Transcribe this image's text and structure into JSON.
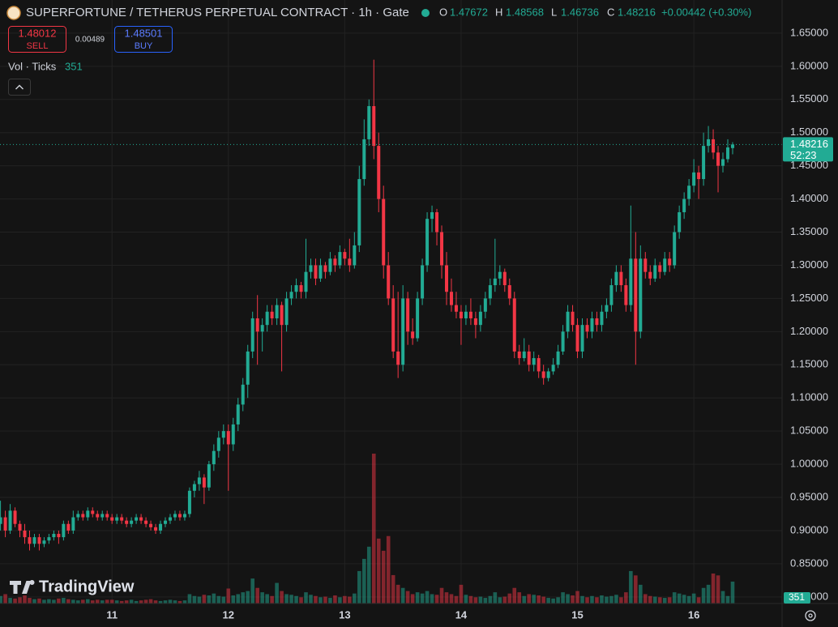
{
  "chart_data": {
    "type": "candlestick",
    "title": "SUPERFORTUNE / TETHERUS PERPETUAL CONTRACT · 1h · Gate",
    "ohlc_labels": [
      "O",
      "H",
      "L",
      "C"
    ],
    "change": "+0.00442 (+0.30%)",
    "colors": {
      "up": "#22ab94",
      "down": "#f23645"
    },
    "series": [
      {
        "values": [
          [
            0.91,
            0.945,
            0.9,
            0.92
          ],
          [
            0.92,
            0.93,
            0.89,
            0.9
          ],
          [
            0.9,
            0.94,
            0.895,
            0.93
          ],
          [
            0.93,
            0.935,
            0.905,
            0.91
          ],
          [
            0.91,
            0.915,
            0.89,
            0.9
          ],
          [
            0.9,
            0.91,
            0.88,
            0.89
          ],
          [
            0.89,
            0.9,
            0.87,
            0.88
          ],
          [
            0.88,
            0.895,
            0.875,
            0.89
          ],
          [
            0.89,
            0.895,
            0.87,
            0.88
          ],
          [
            0.88,
            0.89,
            0.875,
            0.885
          ],
          [
            0.885,
            0.895,
            0.88,
            0.89
          ],
          [
            0.89,
            0.9,
            0.885,
            0.895
          ],
          [
            0.895,
            0.9,
            0.88,
            0.89
          ],
          [
            0.89,
            0.915,
            0.885,
            0.91
          ],
          [
            0.91,
            0.915,
            0.895,
            0.9
          ],
          [
            0.9,
            0.93,
            0.895,
            0.92
          ],
          [
            0.92,
            0.93,
            0.915,
            0.925
          ],
          [
            0.925,
            0.93,
            0.915,
            0.92
          ],
          [
            0.92,
            0.935,
            0.915,
            0.93
          ],
          [
            0.93,
            0.935,
            0.92,
            0.925
          ],
          [
            0.925,
            0.93,
            0.915,
            0.92
          ],
          [
            0.92,
            0.93,
            0.915,
            0.925
          ],
          [
            0.925,
            0.93,
            0.915,
            0.92
          ],
          [
            0.92,
            0.925,
            0.91,
            0.915
          ],
          [
            0.915,
            0.925,
            0.91,
            0.92
          ],
          [
            0.92,
            0.925,
            0.91,
            0.915
          ],
          [
            0.915,
            0.92,
            0.905,
            0.91
          ],
          [
            0.91,
            0.92,
            0.905,
            0.915
          ],
          [
            0.915,
            0.925,
            0.91,
            0.92
          ],
          [
            0.92,
            0.925,
            0.91,
            0.915
          ],
          [
            0.915,
            0.92,
            0.905,
            0.91
          ],
          [
            0.91,
            0.915,
            0.9,
            0.905
          ],
          [
            0.905,
            0.91,
            0.895,
            0.9
          ],
          [
            0.9,
            0.915,
            0.895,
            0.91
          ],
          [
            0.91,
            0.92,
            0.905,
            0.915
          ],
          [
            0.915,
            0.925,
            0.91,
            0.92
          ],
          [
            0.92,
            0.93,
            0.915,
            0.925
          ],
          [
            0.925,
            0.93,
            0.915,
            0.92
          ],
          [
            0.92,
            0.93,
            0.915,
            0.925
          ],
          [
            0.925,
            0.965,
            0.92,
            0.96
          ],
          [
            0.96,
            0.975,
            0.95,
            0.97
          ],
          [
            0.97,
            0.99,
            0.96,
            0.98
          ],
          [
            0.98,
            0.985,
            0.94,
            0.965
          ],
          [
            0.965,
            1.005,
            0.96,
            1.0
          ],
          [
            1.0,
            1.03,
            0.99,
            1.02
          ],
          [
            1.02,
            1.05,
            1.01,
            1.04
          ],
          [
            1.04,
            1.06,
            1.03,
            1.05
          ],
          [
            1.05,
            1.06,
            0.96,
            1.03
          ],
          [
            1.03,
            1.07,
            1.02,
            1.06
          ],
          [
            1.06,
            1.1,
            1.05,
            1.09
          ],
          [
            1.09,
            1.13,
            1.08,
            1.12
          ],
          [
            1.12,
            1.18,
            1.1,
            1.17
          ],
          [
            1.17,
            1.23,
            1.16,
            1.22
          ],
          [
            1.22,
            1.255,
            1.15,
            1.2
          ],
          [
            1.2,
            1.22,
            1.17,
            1.21
          ],
          [
            1.21,
            1.24,
            1.2,
            1.23
          ],
          [
            1.23,
            1.24,
            1.21,
            1.22
          ],
          [
            1.22,
            1.25,
            1.21,
            1.24
          ],
          [
            1.24,
            1.245,
            1.14,
            1.21
          ],
          [
            1.21,
            1.26,
            1.2,
            1.25
          ],
          [
            1.25,
            1.27,
            1.24,
            1.26
          ],
          [
            1.26,
            1.28,
            1.25,
            1.27
          ],
          [
            1.27,
            1.275,
            1.25,
            1.26
          ],
          [
            1.26,
            1.34,
            1.25,
            1.29
          ],
          [
            1.29,
            1.31,
            1.28,
            1.3
          ],
          [
            1.3,
            1.31,
            1.27,
            1.28
          ],
          [
            1.28,
            1.31,
            1.275,
            1.3
          ],
          [
            1.3,
            1.305,
            1.28,
            1.29
          ],
          [
            1.29,
            1.32,
            1.285,
            1.31
          ],
          [
            1.31,
            1.315,
            1.29,
            1.3
          ],
          [
            1.3,
            1.33,
            1.295,
            1.32
          ],
          [
            1.32,
            1.325,
            1.3,
            1.31
          ],
          [
            1.31,
            1.34,
            1.29,
            1.3
          ],
          [
            1.3,
            1.35,
            1.295,
            1.33
          ],
          [
            1.33,
            1.45,
            1.32,
            1.43
          ],
          [
            1.43,
            1.52,
            1.42,
            1.49
          ],
          [
            1.49,
            1.55,
            1.48,
            1.54
          ],
          [
            1.54,
            1.61,
            1.46,
            1.48
          ],
          [
            1.48,
            1.5,
            1.38,
            1.4
          ],
          [
            1.4,
            1.42,
            1.28,
            1.3
          ],
          [
            1.3,
            1.32,
            1.24,
            1.25
          ],
          [
            1.25,
            1.27,
            1.16,
            1.17
          ],
          [
            1.17,
            1.26,
            1.13,
            1.15
          ],
          [
            1.15,
            1.27,
            1.14,
            1.25
          ],
          [
            1.25,
            1.26,
            1.18,
            1.2
          ],
          [
            1.2,
            1.22,
            1.18,
            1.19
          ],
          [
            1.19,
            1.26,
            1.185,
            1.25
          ],
          [
            1.25,
            1.31,
            1.24,
            1.3
          ],
          [
            1.3,
            1.38,
            1.29,
            1.37
          ],
          [
            1.37,
            1.39,
            1.35,
            1.38
          ],
          [
            1.38,
            1.385,
            1.33,
            1.35
          ],
          [
            1.35,
            1.36,
            1.28,
            1.3
          ],
          [
            1.3,
            1.32,
            1.24,
            1.26
          ],
          [
            1.26,
            1.28,
            1.23,
            1.24
          ],
          [
            1.24,
            1.26,
            1.22,
            1.23
          ],
          [
            1.23,
            1.24,
            1.18,
            1.22
          ],
          [
            1.22,
            1.24,
            1.21,
            1.23
          ],
          [
            1.23,
            1.25,
            1.21,
            1.22
          ],
          [
            1.22,
            1.23,
            1.19,
            1.21
          ],
          [
            1.21,
            1.24,
            1.2,
            1.23
          ],
          [
            1.23,
            1.26,
            1.22,
            1.25
          ],
          [
            1.25,
            1.28,
            1.24,
            1.27
          ],
          [
            1.27,
            1.34,
            1.26,
            1.28
          ],
          [
            1.28,
            1.3,
            1.27,
            1.29
          ],
          [
            1.29,
            1.295,
            1.26,
            1.27
          ],
          [
            1.27,
            1.28,
            1.24,
            1.25
          ],
          [
            1.25,
            1.26,
            1.16,
            1.17
          ],
          [
            1.17,
            1.18,
            1.15,
            1.16
          ],
          [
            1.16,
            1.19,
            1.155,
            1.17
          ],
          [
            1.17,
            1.18,
            1.14,
            1.15
          ],
          [
            1.15,
            1.17,
            1.14,
            1.16
          ],
          [
            1.16,
            1.165,
            1.13,
            1.14
          ],
          [
            1.14,
            1.15,
            1.12,
            1.13
          ],
          [
            1.13,
            1.145,
            1.125,
            1.14
          ],
          [
            1.14,
            1.16,
            1.135,
            1.15
          ],
          [
            1.15,
            1.18,
            1.145,
            1.17
          ],
          [
            1.17,
            1.21,
            1.165,
            1.2
          ],
          [
            1.2,
            1.24,
            1.19,
            1.23
          ],
          [
            1.23,
            1.24,
            1.2,
            1.21
          ],
          [
            1.21,
            1.22,
            1.16,
            1.17
          ],
          [
            1.17,
            1.22,
            1.16,
            1.21
          ],
          [
            1.21,
            1.22,
            1.19,
            1.2
          ],
          [
            1.2,
            1.23,
            1.19,
            1.22
          ],
          [
            1.22,
            1.23,
            1.2,
            1.21
          ],
          [
            1.21,
            1.24,
            1.2,
            1.23
          ],
          [
            1.23,
            1.25,
            1.22,
            1.24
          ],
          [
            1.24,
            1.28,
            1.23,
            1.27
          ],
          [
            1.27,
            1.3,
            1.26,
            1.29
          ],
          [
            1.29,
            1.3,
            1.26,
            1.27
          ],
          [
            1.27,
            1.28,
            1.23,
            1.24
          ],
          [
            1.24,
            1.39,
            1.23,
            1.31
          ],
          [
            1.31,
            1.35,
            1.15,
            1.2
          ],
          [
            1.2,
            1.33,
            1.19,
            1.31
          ],
          [
            1.31,
            1.32,
            1.28,
            1.29
          ],
          [
            1.29,
            1.3,
            1.27,
            1.28
          ],
          [
            1.28,
            1.31,
            1.275,
            1.3
          ],
          [
            1.3,
            1.305,
            1.28,
            1.29
          ],
          [
            1.29,
            1.32,
            1.285,
            1.31
          ],
          [
            1.31,
            1.32,
            1.29,
            1.3
          ],
          [
            1.3,
            1.36,
            1.295,
            1.35
          ],
          [
            1.35,
            1.39,
            1.34,
            1.38
          ],
          [
            1.38,
            1.41,
            1.37,
            1.4
          ],
          [
            1.4,
            1.43,
            1.39,
            1.42
          ],
          [
            1.42,
            1.46,
            1.41,
            1.44
          ],
          [
            1.44,
            1.45,
            1.4,
            1.43
          ],
          [
            1.43,
            1.5,
            1.42,
            1.48
          ],
          [
            1.48,
            1.51,
            1.47,
            1.49
          ],
          [
            1.49,
            1.505,
            1.46,
            1.47
          ],
          [
            1.47,
            1.48,
            1.41,
            1.45
          ],
          [
            1.45,
            1.47,
            1.44,
            1.46
          ],
          [
            1.46,
            1.49,
            1.455,
            1.47774
          ],
          [
            1.47672,
            1.48568,
            1.46736,
            1.48216
          ]
        ]
      },
      {
        "name": "Vol · Ticks",
        "values": [
          120,
          150,
          90,
          80,
          100,
          130,
          90,
          70,
          80,
          60,
          70,
          60,
          80,
          90,
          70,
          60,
          50,
          60,
          70,
          50,
          60,
          50,
          60,
          60,
          50,
          40,
          50,
          60,
          40,
          50,
          60,
          70,
          50,
          40,
          50,
          60,
          50,
          40,
          50,
          150,
          120,
          110,
          140,
          130,
          160,
          120,
          110,
          240,
          130,
          150,
          180,
          200,
          400,
          250,
          180,
          150,
          120,
          330,
          200,
          150,
          140,
          120,
          100,
          180,
          140,
          120,
          100,
          110,
          90,
          130,
          100,
          120,
          110,
          160,
          520,
          715,
          910,
          2400,
          1040,
          845,
          1080,
          455,
          300,
          250,
          200,
          150,
          180,
          160,
          200,
          150,
          140,
          250,
          180,
          150,
          120,
          300,
          140,
          120,
          100,
          110,
          90,
          120,
          180,
          100,
          110,
          160,
          250,
          180,
          120,
          150,
          140,
          130,
          110,
          90,
          80,
          100,
          180,
          150,
          130,
          200,
          120,
          100,
          120,
          100,
          130,
          110,
          120,
          140,
          100,
          180,
          520,
          450,
          300,
          150,
          120,
          110,
          100,
          90,
          100,
          180,
          160,
          140,
          120,
          160,
          100,
          250,
          300,
          480,
          450,
          200,
          120,
          351
        ]
      }
    ],
    "xlim": [
      -0.1,
      161.2
    ],
    "xticks": [
      {
        "value": 23,
        "label": "11"
      },
      {
        "value": 47,
        "label": "12"
      },
      {
        "value": 71,
        "label": "13"
      },
      {
        "value": 95,
        "label": "14"
      },
      {
        "value": 119,
        "label": "15"
      },
      {
        "value": 143,
        "label": "16"
      }
    ],
    "ylim": [
      0.79,
      1.7
    ],
    "yticks": [
      {
        "value": 0.8,
        "label": "0.80000"
      },
      {
        "value": 0.85,
        "label": "0.85000"
      },
      {
        "value": 0.9,
        "label": "0.90000"
      },
      {
        "value": 0.95,
        "label": "0.95000"
      },
      {
        "value": 1.0,
        "label": "1.00000"
      },
      {
        "value": 1.05,
        "label": "1.05000"
      },
      {
        "value": 1.1,
        "label": "1.10000"
      },
      {
        "value": 1.15,
        "label": "1.15000"
      },
      {
        "value": 1.2,
        "label": "1.20000"
      },
      {
        "value": 1.25,
        "label": "1.25000"
      },
      {
        "value": 1.3,
        "label": "1.30000"
      },
      {
        "value": 1.35,
        "label": "1.35000"
      },
      {
        "value": 1.4,
        "label": "1.40000"
      },
      {
        "value": 1.45,
        "label": "1.45000"
      },
      {
        "value": 1.5,
        "label": "1.50000"
      },
      {
        "value": 1.55,
        "label": "1.55000"
      },
      {
        "value": 1.6,
        "label": "1.60000"
      },
      {
        "value": 1.65,
        "label": "1.65000"
      }
    ],
    "grid": true,
    "countdown": "52:23"
  },
  "trade": {
    "sell": {
      "price": 1.48012,
      "label": "SELL"
    },
    "spread": 0.00489,
    "buy": {
      "price": 1.48501,
      "label": "BUY"
    }
  },
  "logo": "TradingView"
}
